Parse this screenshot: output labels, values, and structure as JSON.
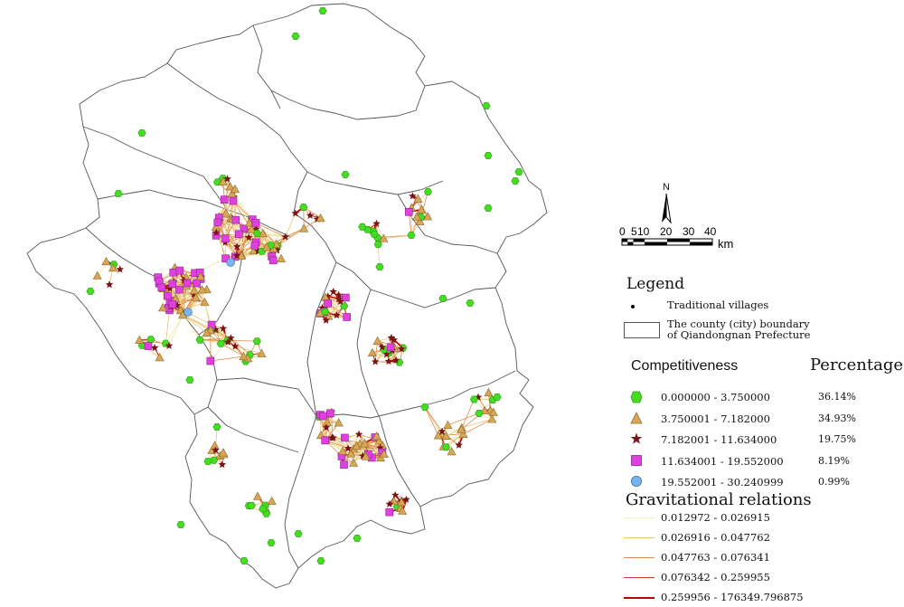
{
  "legend": {
    "title": "Legend",
    "traditional_villages": "Traditional villages",
    "boundary_line1": "The county (city) boundary",
    "boundary_line2": "of Qiandongnan Prefecture"
  },
  "competitiveness": {
    "title": "Competitiveness",
    "percentage_title": "Percentage",
    "classes": [
      {
        "range": "0.000000 - 3.750000",
        "percent": "36.14%",
        "symbol": "green-hexagon",
        "color": "#44dd22"
      },
      {
        "range": "3.750001 - 7.182000",
        "percent": "34.93%",
        "symbol": "orange-triangle",
        "color": "#d9a655"
      },
      {
        "range": "7.182001 - 11.634000",
        "percent": "19.75%",
        "symbol": "dark-red-star",
        "color": "#7a1515"
      },
      {
        "range": "11.634001 - 19.552000",
        "percent": "8.19%",
        "symbol": "magenta-square",
        "color": "#e040e0"
      },
      {
        "range": "19.552001 - 30.240999",
        "percent": "0.99%",
        "symbol": "blue-circle",
        "color": "#79b4ef"
      }
    ]
  },
  "gravitational": {
    "title": "Gravitational relations",
    "classes": [
      {
        "range": "0.012972 - 0.026915",
        "color": "#f4f0b8",
        "width": 1
      },
      {
        "range": "0.026916 - 0.047762",
        "color": "#e8c27a",
        "width": 1
      },
      {
        "range": "0.047763 - 0.076341",
        "color": "#e08a4a",
        "width": 1.3
      },
      {
        "range": "0.076342 - 0.259955",
        "color": "#d53a2a",
        "width": 1.5
      },
      {
        "range": "0.259956 - 176349.796875",
        "color": "#c00000",
        "width": 2.2
      }
    ]
  },
  "scale_bar": {
    "labels": [
      "0",
      "5",
      "10",
      "20",
      "30",
      "40"
    ],
    "unit": "km"
  },
  "north_arrow": {
    "label": "N"
  }
}
